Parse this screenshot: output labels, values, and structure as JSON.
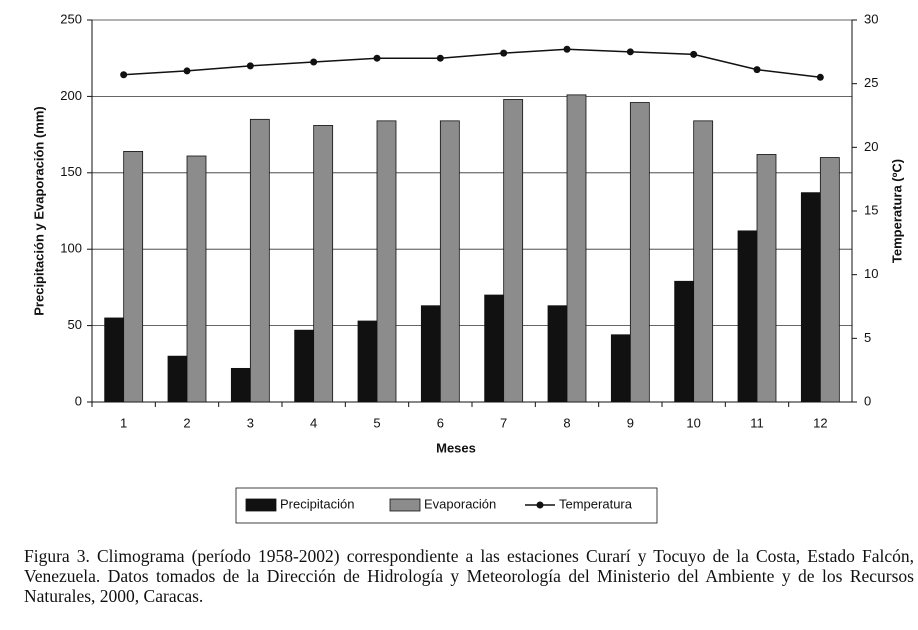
{
  "chart_data": {
    "type": "bar",
    "categories": [
      "1",
      "2",
      "3",
      "4",
      "5",
      "6",
      "7",
      "8",
      "9",
      "10",
      "11",
      "12"
    ],
    "series": [
      {
        "name": "Precipitación",
        "color": "#111111",
        "values": [
          55,
          30,
          22,
          47,
          53,
          63,
          70,
          63,
          44,
          79,
          112,
          137
        ]
      },
      {
        "name": "Evaporación",
        "color": "#8c8c8c",
        "values": [
          164,
          161,
          185,
          181,
          184,
          184,
          198,
          201,
          196,
          184,
          162,
          160
        ]
      },
      {
        "name": "Temperatura",
        "color": "#111111",
        "type": "line",
        "axis": "y2",
        "values": [
          25.7,
          26.0,
          26.4,
          26.7,
          27.0,
          27.0,
          27.4,
          27.7,
          27.5,
          27.3,
          26.1,
          25.5
        ]
      }
    ],
    "ylim": [
      0,
      250
    ],
    "yticks": [
      0,
      50,
      100,
      150,
      200,
      250
    ],
    "y2lim": [
      0,
      30
    ],
    "y2ticks": [
      0,
      5,
      10,
      15,
      20,
      25,
      30
    ],
    "xlabel": "Meses",
    "ylabel": "Precipitación y Evaporación (mm)",
    "y2label": "Temperatura (ºC)",
    "grid": true,
    "legend": "bottom",
    "caption": "Figura 3. Climograma (período 1958-2002) correspondiente a las estaciones Curarí y Tocuyo de la Costa, Estado Falcón, Venezuela. Datos tomados de la Dirección de Hidrología y Meteorología del Ministerio del Ambiente y de los Recursos Naturales, 2000, Caracas."
  }
}
